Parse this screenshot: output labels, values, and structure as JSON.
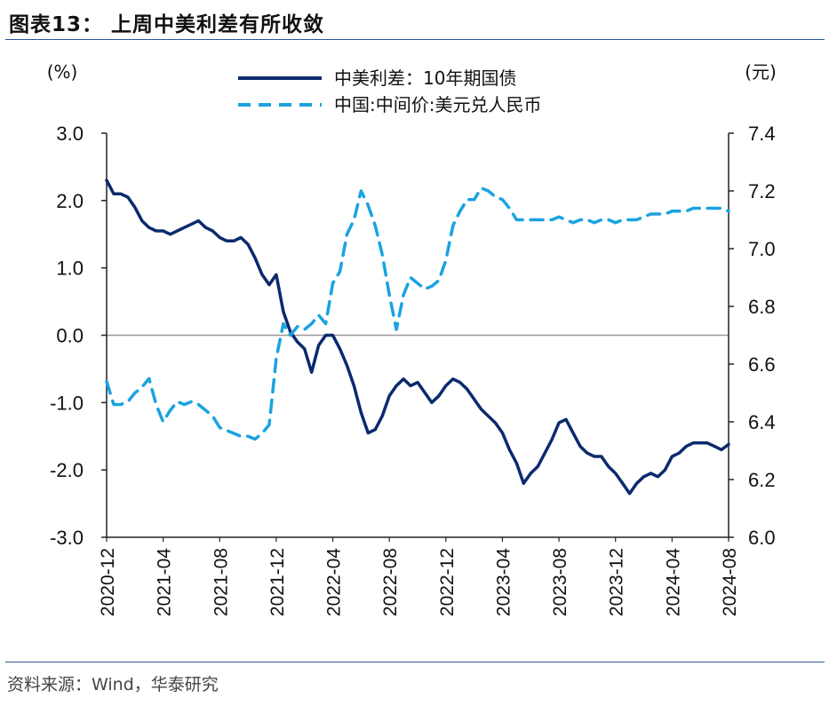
{
  "header": {
    "title": "图表13：  上周中美利差有所收敛"
  },
  "footer": {
    "source": "资料来源：Wind，华泰研究"
  },
  "colors": {
    "spread": "#0b2a6e",
    "fx": "#1aa3e0",
    "axis": "#222222",
    "zero_line": "#9a9a9a",
    "rule": "#2f5597"
  },
  "chart_data": {
    "type": "line",
    "title": "上周中美利差有所收敛",
    "left_axis": {
      "unit": "(%)",
      "ylim": [
        -3.0,
        3.0
      ],
      "ticks": [
        "3.0",
        "2.0",
        "1.0",
        "0.0",
        "-1.0",
        "-2.0",
        "-3.0"
      ]
    },
    "right_axis": {
      "unit": "(元)",
      "ylim": [
        6.0,
        7.4
      ],
      "ticks": [
        "7.4",
        "7.2",
        "7.0",
        "6.8",
        "6.6",
        "6.4",
        "6.2",
        "6.0"
      ]
    },
    "x_ticks": [
      "2020-12",
      "2021-04",
      "2021-08",
      "2021-12",
      "2022-04",
      "2022-08",
      "2022-12",
      "2023-04",
      "2023-08",
      "2023-12",
      "2024-04",
      "2024-08"
    ],
    "x_range_months": [
      0,
      44
    ],
    "zero_line": 0.0,
    "legend_position": "top-center",
    "series": [
      {
        "name": "中美利差：10年期国债",
        "axis": "left",
        "style": "solid",
        "x": [
          0,
          0.5,
          1,
          1.5,
          2,
          2.5,
          3,
          3.5,
          4,
          4.5,
          5,
          5.5,
          6,
          6.5,
          7,
          7.5,
          8,
          8.5,
          9,
          9.5,
          10,
          10.5,
          11,
          11.5,
          12,
          12.5,
          13,
          13.5,
          14,
          14.5,
          15,
          15.5,
          16,
          16.5,
          17,
          17.5,
          18,
          18.5,
          19,
          19.5,
          20,
          20.5,
          21,
          21.5,
          22,
          22.5,
          23,
          23.5,
          24,
          24.5,
          25,
          25.5,
          26,
          26.5,
          27,
          27.5,
          28,
          28.5,
          29,
          29.5,
          30,
          30.5,
          31,
          31.5,
          32,
          32.5,
          33,
          33.5,
          34,
          34.5,
          35,
          35.5,
          36,
          36.5,
          37,
          37.5,
          38,
          38.5,
          39,
          39.5,
          40,
          40.5,
          41,
          41.5,
          42,
          42.5,
          43,
          43.5,
          44
        ],
        "values": [
          2.3,
          2.1,
          2.1,
          2.05,
          1.9,
          1.7,
          1.6,
          1.55,
          1.55,
          1.5,
          1.55,
          1.6,
          1.65,
          1.7,
          1.6,
          1.55,
          1.45,
          1.4,
          1.4,
          1.45,
          1.35,
          1.15,
          0.9,
          0.75,
          0.9,
          0.35,
          0.05,
          -0.1,
          -0.2,
          -0.55,
          -0.15,
          0.0,
          0.0,
          -0.2,
          -0.45,
          -0.75,
          -1.15,
          -1.45,
          -1.4,
          -1.2,
          -0.9,
          -0.75,
          -0.65,
          -0.75,
          -0.7,
          -0.85,
          -1.0,
          -0.9,
          -0.75,
          -0.65,
          -0.7,
          -0.8,
          -0.95,
          -1.1,
          -1.2,
          -1.3,
          -1.45,
          -1.7,
          -1.9,
          -2.2,
          -2.05,
          -1.95,
          -1.75,
          -1.55,
          -1.3,
          -1.25,
          -1.45,
          -1.65,
          -1.75,
          -1.8,
          -1.8,
          -1.95,
          -2.05,
          -2.2,
          -2.35,
          -2.2,
          -2.1,
          -2.05,
          -2.1,
          -2.0,
          -1.8,
          -1.75,
          -1.65,
          -1.6,
          -1.6,
          -1.6,
          -1.65,
          -1.7,
          -1.62
        ]
      },
      {
        "name": "中国:中间价:美元兑人民币",
        "axis": "right",
        "style": "dashed",
        "x": [
          0,
          0.5,
          1,
          1.5,
          2,
          2.5,
          3,
          3.5,
          4,
          4.5,
          5,
          5.5,
          6,
          6.5,
          7,
          7.5,
          8,
          8.5,
          9,
          9.5,
          10,
          10.5,
          11,
          11.5,
          12,
          12.5,
          13,
          13.5,
          14,
          14.5,
          15,
          15.5,
          16,
          16.5,
          17,
          17.5,
          18,
          18.5,
          19,
          19.5,
          20,
          20.5,
          21,
          21.5,
          22,
          22.5,
          23,
          23.5,
          24,
          24.5,
          25,
          25.5,
          26,
          26.5,
          27,
          27.5,
          28,
          28.5,
          29,
          29.5,
          30,
          30.5,
          31,
          31.5,
          32,
          32.5,
          33,
          33.5,
          34,
          34.5,
          35,
          35.5,
          36,
          36.5,
          37,
          37.5,
          38,
          38.5,
          39,
          39.5,
          40,
          40.5,
          41,
          41.5,
          42,
          42.5,
          43,
          43.5,
          44
        ],
        "values": [
          6.54,
          6.46,
          6.46,
          6.47,
          6.5,
          6.52,
          6.55,
          6.46,
          6.4,
          6.44,
          6.47,
          6.46,
          6.47,
          6.46,
          6.44,
          6.42,
          6.38,
          6.37,
          6.36,
          6.35,
          6.35,
          6.34,
          6.36,
          6.39,
          6.62,
          6.74,
          6.7,
          6.73,
          6.72,
          6.74,
          6.77,
          6.74,
          6.88,
          6.92,
          7.05,
          7.1,
          7.2,
          7.15,
          7.08,
          6.98,
          6.84,
          6.72,
          6.84,
          6.9,
          6.88,
          6.86,
          6.87,
          6.89,
          6.96,
          7.08,
          7.13,
          7.17,
          7.17,
          7.21,
          7.2,
          7.18,
          7.17,
          7.14,
          7.1,
          7.1,
          7.1,
          7.1,
          7.1,
          7.1,
          7.11,
          7.1,
          7.09,
          7.1,
          7.1,
          7.09,
          7.1,
          7.1,
          7.09,
          7.1,
          7.1,
          7.1,
          7.11,
          7.12,
          7.12,
          7.12,
          7.13,
          7.13,
          7.13,
          7.14,
          7.14,
          7.14,
          7.14,
          7.14,
          7.13
        ]
      }
    ]
  }
}
